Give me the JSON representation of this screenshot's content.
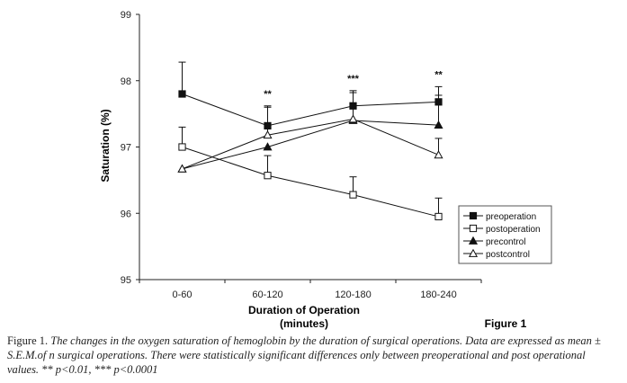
{
  "chart_data": {
    "type": "line",
    "xlabel": "Duration of Operation",
    "xlabel_sub": "(minutes)",
    "ylabel": "Saturation (%)",
    "categories": [
      "0-60",
      "60-120",
      "120-180",
      "180-240"
    ],
    "ylim": [
      95,
      99
    ],
    "yticks": [
      "95",
      "96",
      "97",
      "98",
      "99"
    ],
    "grid": false,
    "legend_position": "right",
    "series": [
      {
        "name": "preoperation",
        "marker": "filled-square",
        "values": [
          97.8,
          97.32,
          97.62,
          97.68
        ],
        "err": [
          0.48,
          0.3,
          0.23,
          0.23
        ]
      },
      {
        "name": "postoperation",
        "marker": "open-square",
        "values": [
          97.0,
          96.57,
          96.28,
          95.95
        ],
        "err": [
          0.3,
          0.3,
          0.27,
          0.28
        ]
      },
      {
        "name": "precontrol",
        "marker": "filled-triangle",
        "values": [
          96.67,
          97.0,
          97.4,
          97.33
        ],
        "err": [
          0,
          0,
          0,
          0.45
        ]
      },
      {
        "name": "postcontrol",
        "marker": "open-triangle",
        "values": [
          96.67,
          97.18,
          97.42,
          96.88
        ],
        "err": [
          0,
          0.42,
          0.4,
          0.25
        ]
      }
    ],
    "significance": [
      "",
      "**",
      "***",
      "**"
    ],
    "figure_label": "Figure 1"
  },
  "caption": {
    "lead": "Figure 1.",
    "text": "The changes in the oxygen saturation of hemoglobin by the duration of surgical operations. Data are expressed as mean ± S.E.M.of n surgical operations. There were statistically significant differences only between preoperational and post operational values. ** p<0.01, *** p<0.0001"
  }
}
